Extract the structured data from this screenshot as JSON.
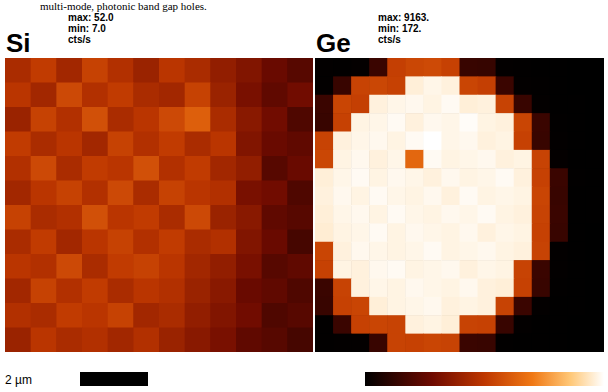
{
  "caption": "multi-mode, photonic band gap holes.",
  "scale_bar": {
    "label": "2 µm"
  },
  "chart_data": [
    {
      "type": "heatmap",
      "title": "Si",
      "color_range": {
        "min": {
          "value": 7,
          "label": "min: 7.0"
        },
        "max": {
          "value": 52,
          "label": "max: 52.0"
        }
      },
      "color_unit": "cts/s",
      "values": [
        [
          27,
          30,
          26,
          31,
          28,
          25,
          29,
          27,
          24,
          22,
          19,
          17
        ],
        [
          29,
          26,
          32,
          28,
          30,
          27,
          26,
          31,
          25,
          21,
          18,
          20
        ],
        [
          25,
          31,
          28,
          33,
          27,
          29,
          32,
          35,
          27,
          23,
          20,
          16
        ],
        [
          30,
          27,
          29,
          26,
          31,
          28,
          30,
          27,
          29,
          22,
          19,
          18
        ],
        [
          28,
          32,
          27,
          30,
          29,
          33,
          28,
          30,
          26,
          24,
          17,
          19
        ],
        [
          26,
          29,
          31,
          28,
          32,
          27,
          31,
          29,
          28,
          21,
          20,
          16
        ],
        [
          31,
          27,
          28,
          33,
          29,
          30,
          27,
          32,
          25,
          23,
          18,
          17
        ],
        [
          27,
          30,
          26,
          29,
          31,
          28,
          30,
          27,
          28,
          22,
          19,
          15
        ],
        [
          29,
          28,
          32,
          27,
          30,
          31,
          29,
          26,
          24,
          21,
          17,
          18
        ],
        [
          26,
          31,
          28,
          30,
          27,
          29,
          28,
          25,
          23,
          19,
          18,
          16
        ],
        [
          28,
          27,
          30,
          29,
          31,
          26,
          27,
          24,
          22,
          20,
          16,
          17
        ],
        [
          25,
          29,
          27,
          28,
          26,
          28,
          25,
          23,
          21,
          18,
          17,
          15
        ]
      ]
    },
    {
      "type": "heatmap",
      "title": "Ge",
      "color_range": {
        "min": {
          "value": 172,
          "label": "min: 172."
        },
        "max": {
          "value": 9163,
          "label": "max: 9163."
        }
      },
      "color_unit": "cts/s",
      "values": [
        [
          240,
          220,
          260,
          1500,
          4900,
          5100,
          5200,
          4950,
          1450,
          1400,
          230,
          210,
          200,
          190,
          180,
          175
        ],
        [
          230,
          1450,
          5000,
          5100,
          4950,
          8800,
          8950,
          8850,
          5050,
          4900,
          1500,
          240,
          210,
          190,
          180,
          172
        ],
        [
          1500,
          5050,
          4900,
          8850,
          8950,
          9000,
          8900,
          9050,
          8800,
          8850,
          5000,
          1450,
          250,
          200,
          185,
          178
        ],
        [
          1450,
          4950,
          8900,
          8950,
          9050,
          8850,
          9000,
          8950,
          9100,
          8900,
          8850,
          5050,
          1500,
          220,
          190,
          180
        ],
        [
          5000,
          8850,
          8950,
          9000,
          8900,
          9050,
          9163,
          8950,
          9000,
          8850,
          8900,
          4950,
          1450,
          240,
          195,
          182
        ],
        [
          5100,
          8900,
          9000,
          8850,
          8950,
          6000,
          9050,
          8900,
          8950,
          9000,
          8850,
          8900,
          5000,
          260,
          200,
          185
        ],
        [
          8800,
          8950,
          9050,
          8900,
          9000,
          8950,
          8850,
          9000,
          8900,
          8950,
          9050,
          8850,
          4950,
          1500,
          210,
          188
        ],
        [
          8850,
          9000,
          8900,
          9050,
          8950,
          8900,
          9000,
          8850,
          9050,
          8900,
          8950,
          8900,
          5050,
          1450,
          205,
          186
        ],
        [
          8800,
          8950,
          9000,
          8900,
          9050,
          8950,
          8900,
          9000,
          8950,
          9050,
          8900,
          8850,
          5000,
          1500,
          200,
          184
        ],
        [
          8750,
          8900,
          8950,
          9050,
          8900,
          9000,
          8950,
          8900,
          9000,
          8850,
          8950,
          8900,
          4950,
          1450,
          198,
          182
        ],
        [
          5050,
          8850,
          9000,
          8950,
          8900,
          8950,
          9050,
          8900,
          8950,
          9000,
          8900,
          8850,
          5000,
          250,
          195,
          180
        ],
        [
          4950,
          8900,
          8850,
          9000,
          9050,
          8900,
          8950,
          9000,
          8850,
          8950,
          8900,
          5000,
          1500,
          230,
          190,
          178
        ],
        [
          1500,
          5000,
          8850,
          8950,
          8900,
          9000,
          8950,
          8900,
          9000,
          8850,
          8800,
          4950,
          1450,
          210,
          188,
          176
        ],
        [
          1450,
          4950,
          5050,
          8800,
          8900,
          8950,
          9000,
          8850,
          8900,
          8850,
          5000,
          1500,
          240,
          200,
          185,
          175
        ],
        [
          220,
          1500,
          4950,
          5050,
          5000,
          8850,
          8900,
          8800,
          5000,
          4950,
          1450,
          230,
          205,
          190,
          180,
          174
        ],
        [
          210,
          230,
          250,
          1450,
          5000,
          4950,
          5050,
          5000,
          1500,
          1450,
          220,
          200,
          190,
          185,
          178,
          173
        ]
      ]
    }
  ]
}
